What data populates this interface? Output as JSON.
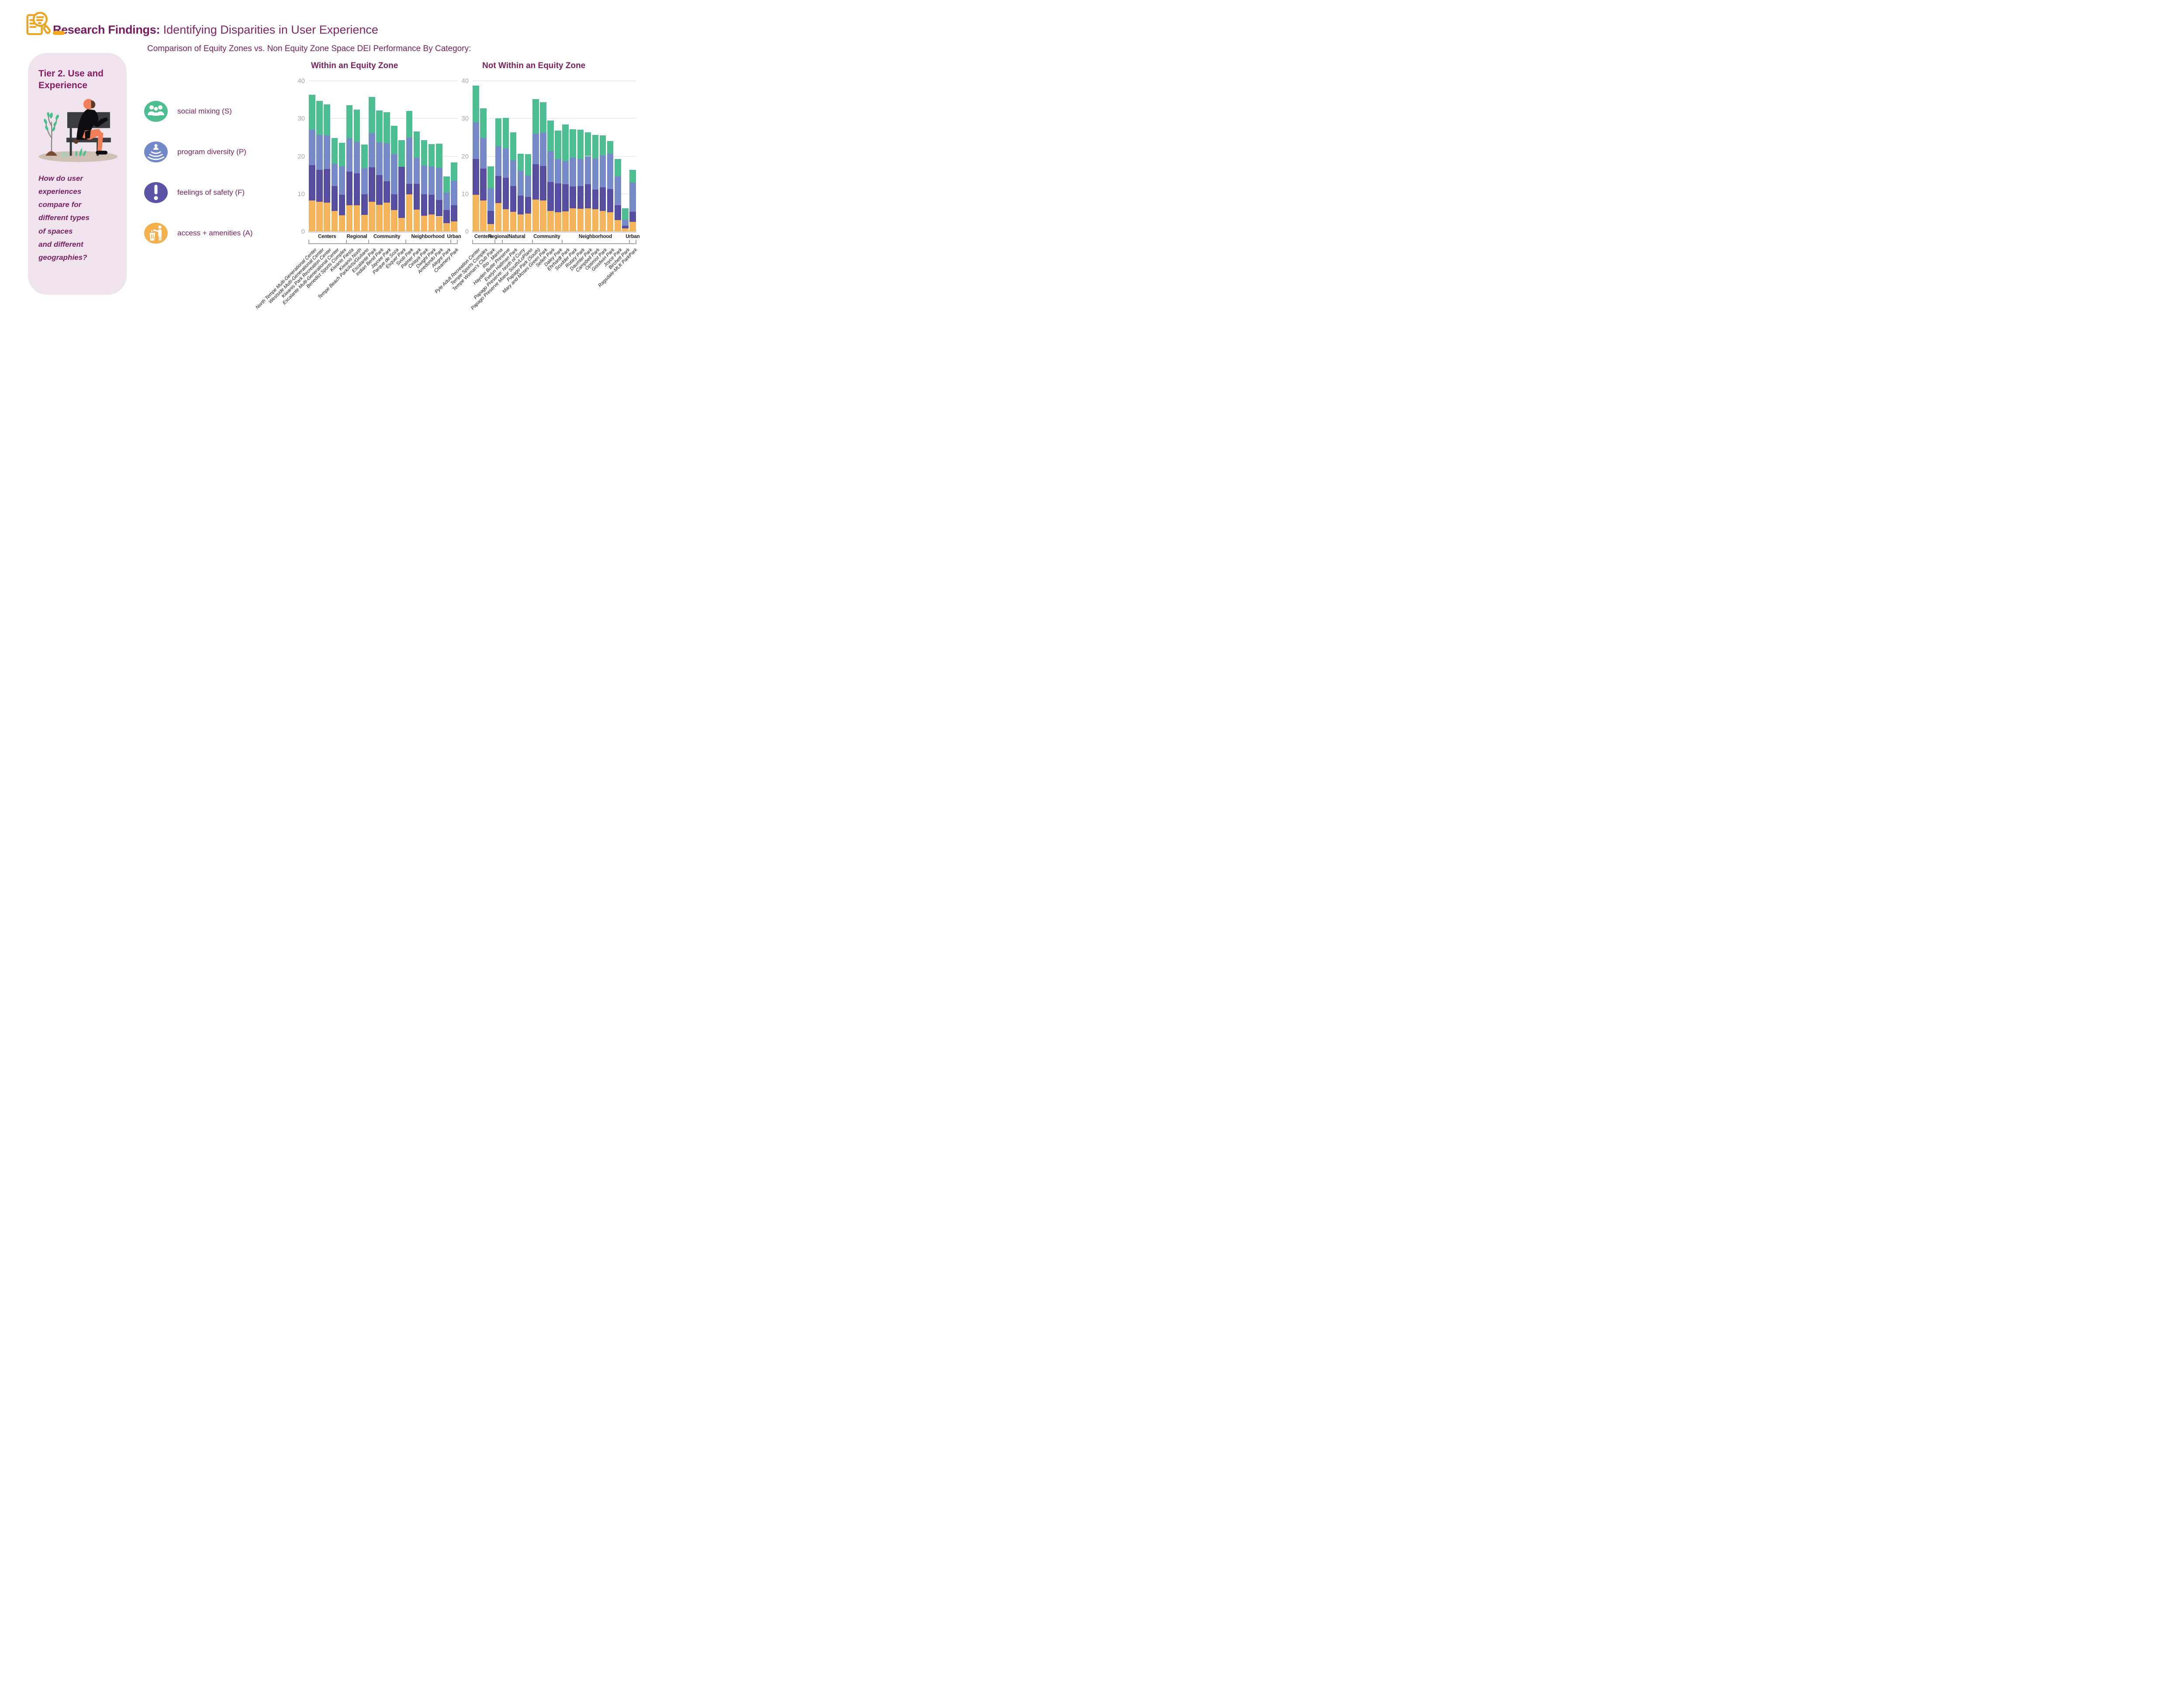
{
  "header": {
    "title_bold": "Research Findings:",
    "title_rest": " Identifying Disparities in User Experience"
  },
  "subtitle": "Comparison of Equity Zones vs. Non Equity Zone Space DEI Performance By Category:",
  "sidebar": {
    "title": "Tier 2. Use and Experience",
    "question_lines": [
      "How do user",
      "experiences",
      "compare for",
      "different types",
      "of spaces",
      "and different",
      "geographies?"
    ]
  },
  "legend": {
    "items": [
      {
        "icon": "social-mixing-icon",
        "label": "social mixing (S)",
        "color": "#4DBE92"
      },
      {
        "icon": "program-diversity-icon",
        "label": "program diversity (P)",
        "color": "#7289C9"
      },
      {
        "icon": "feelings-of-safety-icon",
        "label": "feelings of safety (F)",
        "color": "#5B53A6"
      },
      {
        "icon": "access-amenities-icon",
        "label": "access + amenities (A)",
        "color": "#F5B04C"
      }
    ]
  },
  "colors": {
    "accent_orange": "#F5A81C",
    "title_purple": "#7A1A63",
    "text_purple": "#7B2160",
    "panel_bg": "#EFE4EE",
    "bar_access": "#F5B45A",
    "bar_safety": "#564CA0",
    "bar_program": "#7689C8",
    "bar_social": "#4DBE92",
    "grid": "#EDEDED",
    "axis_text": "#A9A9A9"
  },
  "chart_data": [
    {
      "type": "bar",
      "stacked": true,
      "title": "Within an Equity Zone",
      "ylim": [
        0,
        40
      ],
      "yticks": [
        0,
        10,
        20,
        30,
        40
      ],
      "grid": true,
      "categories": [
        "North Tempe Multi-Generational Center",
        "Westside Multi-Generational Center",
        "Kiwanis Park Recreation Center",
        "Escalante Multi-Generational Center",
        "Benedict Sports Complex",
        "Kiwanis Fiesta",
        "Kiwanis North",
        "Tempe Beach Park/Arts/Giuliano",
        "Escalante Park",
        "Indian Bend Park",
        "Jaycee Park",
        "Parque de Soza",
        "Esquer Park",
        "Svob Park",
        "Palmer Park",
        "Celaya Park",
        "Dwight Park",
        "Arredondo Park",
        "Alegre Park",
        "Creamery Park"
      ],
      "groups": [
        {
          "label": "Centers",
          "from": 0,
          "to": 4
        },
        {
          "label": "Regional",
          "from": 5,
          "to": 7
        },
        {
          "label": "Community",
          "from": 8,
          "to": 12
        },
        {
          "label": "Neighborhood",
          "from": 13,
          "to": 18
        },
        {
          "label": "Urban",
          "from": 19,
          "to": 19
        }
      ],
      "series": [
        {
          "name": "access + amenities (A)",
          "color": "#F5B45A",
          "values": [
            8.2,
            7.9,
            7.7,
            5.4,
            4.3,
            6.9,
            7.0,
            4.4,
            7.9,
            7.1,
            7.6,
            5.7,
            3.6,
            9.9,
            5.8,
            4.2,
            4.5,
            4.0,
            2.2,
            2.7
          ]
        },
        {
          "name": "feelings of safety (F)",
          "color": "#564CA0",
          "values": [
            9.4,
            8.5,
            8.9,
            6.7,
            5.4,
            9.0,
            8.4,
            5.5,
            9.2,
            7.8,
            5.7,
            4.1,
            13.6,
            2.7,
            6.8,
            5.6,
            5.2,
            4.3,
            3.5,
            4.2
          ]
        },
        {
          "name": "program diversity (P)",
          "color": "#7689C8",
          "values": [
            9.4,
            9.2,
            8.9,
            5.9,
            7.6,
            8.8,
            8.4,
            6.9,
            9.0,
            8.7,
            10.1,
            10.7,
            0,
            12.3,
            7.0,
            7.7,
            7.6,
            8.6,
            4.6,
            6.5
          ]
        },
        {
          "name": "social mixing (S)",
          "color": "#4DBE92",
          "values": [
            9.3,
            9.1,
            8.2,
            6.8,
            6.2,
            8.8,
            8.6,
            6.3,
            9.6,
            8.5,
            8.2,
            7.6,
            7.0,
            7.1,
            7.0,
            6.7,
            5.9,
            6.4,
            4.3,
            4.9
          ]
        }
      ]
    },
    {
      "type": "bar",
      "stacked": true,
      "title": "Not Within an Equity Zone",
      "ylim": [
        0,
        40
      ],
      "yticks": [
        0,
        10,
        20,
        30,
        40
      ],
      "grid": true,
      "categories": [
        "Pyle Adult Recreation Center",
        "Tempe Sports Complex",
        "Tempe Woman's Club Park",
        "Rio - Marina",
        "Hayden Butte Preserve",
        "Evelyn Hallman Park",
        "Papago Preserve: North of Curry",
        "Papago Preserve Moeur South/LoPlano",
        "Papago Park (South)",
        "Mary and Moses Green Park",
        "Selleh Park",
        "Daley Park",
        "Ehrhardt Park",
        "Scudder Park",
        "Rotary Park",
        "Daumler Park",
        "Campbell Park",
        "Optimist Park",
        "Goodwin Park",
        "Joyce Park",
        "Birchett Park",
        "Ragsdale-MLK ParkPark"
      ],
      "groups": [
        {
          "label": "Centers",
          "from": 0,
          "to": 2
        },
        {
          "label": "Regional",
          "from": 3,
          "to": 3
        },
        {
          "label": "Natural",
          "from": 4,
          "to": 7
        },
        {
          "label": "Community",
          "from": 8,
          "to": 11
        },
        {
          "label": "Neighborhood",
          "from": 12,
          "to": 20
        },
        {
          "label": "Urban",
          "from": 21,
          "to": 21
        }
      ],
      "series": [
        {
          "name": "access + amenities (A)",
          "color": "#F5B45A",
          "values": [
            9.7,
            8.2,
            2.0,
            7.5,
            5.9,
            5.2,
            4.5,
            4.7,
            8.5,
            8.2,
            5.5,
            5.1,
            5.3,
            6.2,
            6.0,
            6.2,
            5.9,
            5.4,
            5.1,
            3.0,
            0.8,
            2.5
          ]
        },
        {
          "name": "feelings of safety (F)",
          "color": "#564CA0",
          "values": [
            9.6,
            8.5,
            3.5,
            7.2,
            8.4,
            6.9,
            5.0,
            4.5,
            9.4,
            9.2,
            7.6,
            7.6,
            7.2,
            5.7,
            6.1,
            6.3,
            5.2,
            6.3,
            6.1,
            3.9,
            0.7,
            2.7
          ]
        },
        {
          "name": "program diversity (P)",
          "color": "#7689C8",
          "values": [
            9.7,
            8.1,
            6.0,
            7.9,
            7.7,
            6.8,
            6.6,
            5.6,
            8.1,
            8.8,
            8.2,
            6.5,
            6.2,
            7.7,
            7.2,
            7.5,
            8.3,
            8.5,
            9.4,
            7.7,
            1.6,
            7.8
          ]
        },
        {
          "name": "social mixing (S)",
          "color": "#4DBE92",
          "values": [
            9.7,
            7.9,
            5.8,
            7.4,
            8.1,
            7.4,
            4.5,
            5.7,
            9.1,
            8.1,
            8.2,
            7.6,
            9.7,
            7.5,
            7.7,
            6.3,
            6.2,
            5.3,
            3.4,
            4.7,
            3.1,
            3.3
          ]
        }
      ]
    }
  ]
}
